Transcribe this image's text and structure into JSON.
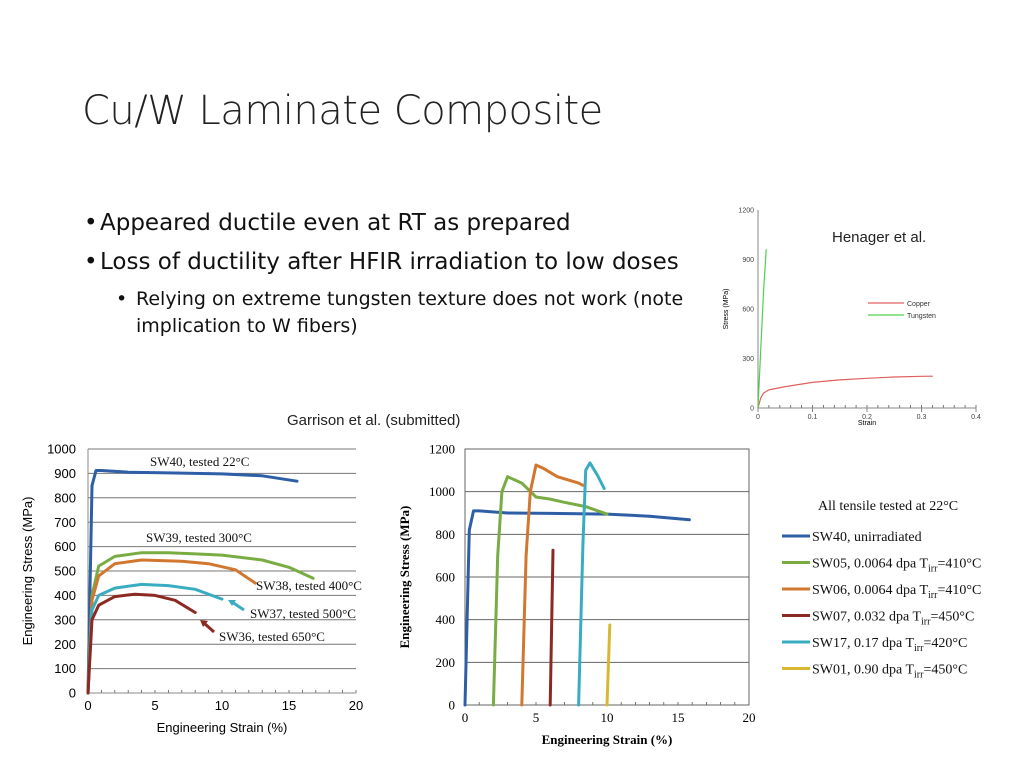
{
  "slide": {
    "title": "Cu/W Laminate Composite",
    "bullets": [
      {
        "text": "Appeared ductile even at RT as prepared",
        "level": 1
      },
      {
        "text": "Loss of ductility after HFIR irradiation to low doses",
        "level": 1
      },
      {
        "text": "Relying on extreme tungsten texture does not work (note implication to W fibers)",
        "level": 2
      }
    ],
    "caption_henager": "Henager et al.",
    "caption_garrison": "Garrison et al. (submitted)"
  },
  "chart_data": [
    {
      "type": "line",
      "xlabel": "Strain",
      "ylabel": "Stress (MPa)",
      "xlim": [
        0,
        0.4
      ],
      "ylim": [
        0,
        1200
      ],
      "xticks": [
        "0",
        "0.1",
        "0.2",
        "0.3",
        "0.4"
      ],
      "yticks": [
        "0",
        "300",
        "600",
        "900",
        "1200"
      ],
      "series": [
        {
          "name": "Copper",
          "color": "#e06060",
          "x": [
            0,
            0.005,
            0.01,
            0.02,
            0.05,
            0.1,
            0.15,
            0.2,
            0.25,
            0.3,
            0.32
          ],
          "y": [
            0,
            60,
            90,
            110,
            130,
            155,
            170,
            180,
            188,
            192,
            193
          ]
        },
        {
          "name": "Tungsten",
          "color": "#50d050",
          "x": [
            0,
            0.005,
            0.01,
            0.015
          ],
          "y": [
            0,
            350,
            700,
            960
          ]
        }
      ]
    },
    {
      "type": "line",
      "xlabel": "Engineering Strain (%)",
      "ylabel": "Engineering Stress (MPa)",
      "xlim": [
        0,
        20
      ],
      "ylim": [
        0,
        1000
      ],
      "xticks": [
        "0",
        "5",
        "10",
        "15",
        "20"
      ],
      "yticks": [
        "0",
        "100",
        "200",
        "300",
        "400",
        "500",
        "600",
        "700",
        "800",
        "900",
        "1000"
      ],
      "series": [
        {
          "label": "SW40, tested 22°C",
          "color": "#2e5ea6",
          "x": [
            0,
            0.3,
            0.6,
            1,
            3,
            6,
            10,
            13,
            15.6
          ],
          "y": [
            0,
            850,
            912,
            912,
            905,
            902,
            898,
            890,
            868
          ]
        },
        {
          "label": "SW39, tested 300°C",
          "color": "#7aac44",
          "x": [
            0,
            0.3,
            0.8,
            2,
            4,
            6,
            8,
            10,
            13,
            15,
            16.8
          ],
          "y": [
            0,
            400,
            520,
            560,
            575,
            575,
            570,
            565,
            545,
            515,
            470
          ]
        },
        {
          "label": "SW38, tested 400°C",
          "color": "#d2772f",
          "x": [
            0,
            0.3,
            0.8,
            2,
            4,
            7,
            9,
            11,
            12.5
          ],
          "y": [
            0,
            380,
            480,
            530,
            545,
            540,
            530,
            505,
            450
          ]
        },
        {
          "label": "SW37, tested 500°C",
          "color": "#3aacc2",
          "x": [
            0,
            0.3,
            0.8,
            2,
            4,
            6,
            8,
            10
          ],
          "y": [
            0,
            340,
            400,
            430,
            445,
            440,
            425,
            385
          ]
        },
        {
          "label": "SW36, tested 650°C",
          "color": "#8b2a22",
          "x": [
            0,
            0.3,
            0.8,
            2,
            3.5,
            5,
            6.5,
            8
          ],
          "y": [
            0,
            300,
            360,
            395,
            405,
            400,
            380,
            330
          ]
        }
      ]
    },
    {
      "type": "line",
      "xlabel": "Engineering Strain (%)",
      "ylabel": "Engineering Stress (MPa)",
      "xlim": [
        0,
        20
      ],
      "ylim": [
        0,
        1200
      ],
      "xticks": [
        "0",
        "5",
        "10",
        "15",
        "20"
      ],
      "yticks": [
        "0",
        "200",
        "400",
        "600",
        "800",
        "1000",
        "1200"
      ],
      "legend_title": "All tensile tested at 22°C",
      "legend_position": "right",
      "series": [
        {
          "name": "SW40, unirradiated",
          "color": "#2e5ea6",
          "x": [
            0,
            0.3,
            0.6,
            1,
            3,
            6,
            10,
            13,
            15.8
          ],
          "y": [
            0,
            820,
            910,
            910,
            900,
            898,
            895,
            885,
            868
          ]
        },
        {
          "name": "SW05, 0.0064 dpa T<sub>irr</sub>=410°C",
          "name_parts": [
            "SW05, 0.0064 dpa T",
            "irr",
            "=410°C"
          ],
          "color": "#7aac44",
          "x": [
            2,
            2.3,
            2.6,
            3,
            4,
            5,
            6,
            7,
            8.5,
            10
          ],
          "y": [
            0,
            700,
            1000,
            1070,
            1040,
            975,
            965,
            950,
            930,
            895
          ]
        },
        {
          "name": "SW06, 0.0064 dpa T<sub>irr</sub>=410°C",
          "name_parts": [
            "SW06, 0.0064 dpa T",
            "irr",
            "=410°C"
          ],
          "color": "#d2772f",
          "x": [
            4,
            4.3,
            4.6,
            5,
            5.5,
            6.5,
            8,
            8.3
          ],
          "y": [
            0,
            700,
            1000,
            1125,
            1110,
            1070,
            1040,
            1030
          ]
        },
        {
          "name": "SW07, 0.032 dpa T<sub>irr</sub>=450°C",
          "name_parts": [
            "SW07, 0.032 dpa T",
            "irr",
            "=450°C"
          ],
          "color": "#8b2a22",
          "x": [
            6,
            6.2
          ],
          "y": [
            0,
            725
          ]
        },
        {
          "name": "SW17, 0.17 dpa T<sub>irr</sub>=420°C",
          "name_parts": [
            "SW17, 0.17 dpa T",
            "irr",
            "=420°C"
          ],
          "color": "#3aacc2",
          "x": [
            8,
            8.3,
            8.5,
            8.8,
            9.3,
            9.8
          ],
          "y": [
            0,
            750,
            1100,
            1135,
            1080,
            1015
          ]
        },
        {
          "name": "SW01, 0.90 dpa T<sub>irr</sub>=450°C",
          "name_parts": [
            "SW01, 0.90 dpa T",
            "irr",
            "=450°C"
          ],
          "color": "#d8b832",
          "x": [
            10,
            10.2
          ],
          "y": [
            0,
            375
          ]
        }
      ]
    }
  ]
}
